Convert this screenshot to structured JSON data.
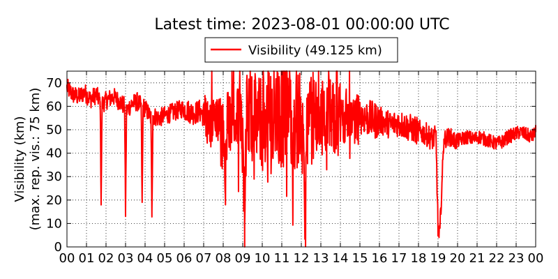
{
  "chart_data": {
    "type": "line",
    "title": "Latest time: 2023-08-01 00:00:00 UTC",
    "ylabel_line1": "Visibility (km)",
    "ylabel_line2": "(max. rep. vis.: 75 km)",
    "xlabel": "",
    "xlim": [
      0,
      24
    ],
    "ylim": [
      0,
      75
    ],
    "grid": true,
    "legend_position": "top-center",
    "x_tick_labels": [
      "00",
      "01",
      "02",
      "03",
      "04",
      "05",
      "06",
      "07",
      "08",
      "09",
      "10",
      "11",
      "12",
      "13",
      "14",
      "15",
      "16",
      "17",
      "18",
      "19",
      "20",
      "21",
      "22",
      "23",
      "00"
    ],
    "y_ticks": [
      0,
      10,
      20,
      30,
      40,
      50,
      60,
      70
    ],
    "series": [
      {
        "name": "Visibility (49.125 km)",
        "color": "#ff0000",
        "x": [
          0,
          0.3,
          0.6,
          0.9,
          1.2,
          1.5,
          1.7,
          1.75,
          1.8,
          2.1,
          2.4,
          2.7,
          2.95,
          3.0,
          3.05,
          3.3,
          3.6,
          3.8,
          3.85,
          3.9,
          4.1,
          4.3,
          4.35,
          4.4,
          4.7,
          5.0,
          5.3,
          5.6,
          5.9,
          6.2,
          6.5,
          6.8,
          7.0,
          7.2,
          7.5,
          7.8,
          8.0,
          8.1,
          8.2,
          8.5,
          8.8,
          9.0,
          9.1,
          9.2,
          9.5,
          9.8,
          10.0,
          10.2,
          10.5,
          10.8,
          11.0,
          11.3,
          11.6,
          11.9,
          12.0,
          12.2,
          12.3,
          12.4,
          12.6,
          12.8,
          13.0,
          13.3,
          13.6,
          13.9,
          14.2,
          14.5,
          14.8,
          15.1,
          15.4,
          15.7,
          16.0,
          16.3,
          16.6,
          16.9,
          17.2,
          17.5,
          17.8,
          18.1,
          18.4,
          18.7,
          18.9,
          19.0,
          19.05,
          19.1,
          19.3,
          19.6,
          19.9,
          20.2,
          20.5,
          20.8,
          21.1,
          21.4,
          21.7,
          22.0,
          22.3,
          22.6,
          22.9,
          23.2,
          23.5,
          23.8,
          24.0
        ],
        "values": [
          68,
          65,
          64,
          66,
          63,
          65,
          62,
          20,
          61,
          63,
          64,
          62,
          60,
          15,
          58,
          61,
          62,
          60,
          19,
          60,
          58,
          55,
          15,
          56,
          55,
          56,
          57,
          58,
          59,
          58,
          57,
          58,
          56,
          54,
          55,
          55,
          53,
          23,
          54,
          52,
          56,
          55,
          10,
          54,
          56,
          54,
          52,
          56,
          57,
          54,
          55,
          58,
          55,
          54,
          56,
          13,
          55,
          54,
          55,
          54,
          55,
          56,
          55,
          54,
          56,
          55,
          55,
          56,
          55,
          54,
          54,
          53,
          52,
          53,
          52,
          51,
          50,
          49,
          48,
          46,
          47,
          7,
          4,
          8,
          46,
          47,
          45,
          46,
          47,
          46,
          47,
          46,
          45,
          44,
          45,
          47,
          48,
          49,
          48,
          47,
          49
        ]
      }
    ],
    "noise_amplitude_by_hour": [
      4,
      4,
      4,
      4,
      4,
      4,
      5,
      10,
      14,
      20,
      22,
      22,
      20,
      16,
      12,
      8,
      6,
      6,
      5,
      4,
      3,
      3,
      3,
      3,
      3
    ]
  }
}
